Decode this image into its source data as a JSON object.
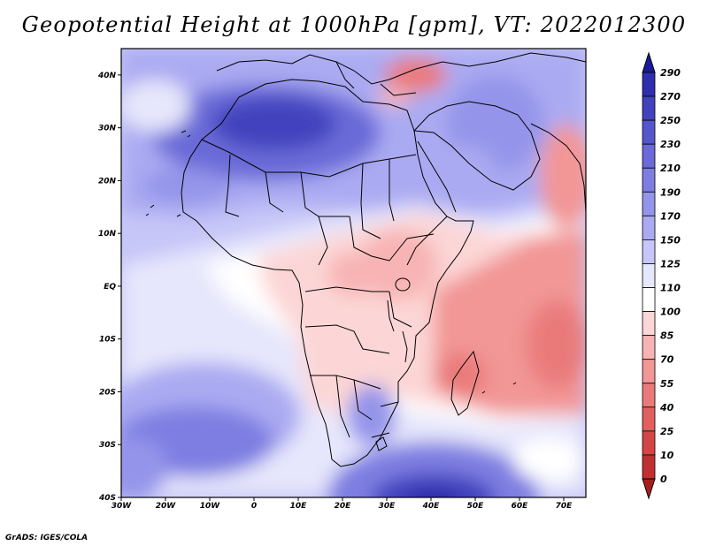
{
  "title": "Geopotential Height at 1000hPa [gpm], VT: 2022012300",
  "credit": "GrADS: IGES/COLA",
  "map": {
    "region": "Africa and surrounding oceans",
    "variable": "Geopotential Height",
    "level": "1000hPa",
    "units": "gpm",
    "valid_time": "2022012300",
    "lon_range": [
      -30,
      75
    ],
    "lat_range": [
      -40,
      45
    ],
    "lon_ticks": [
      "30W",
      "20W",
      "10W",
      "0",
      "10E",
      "20E",
      "30E",
      "40E",
      "50E",
      "60E",
      "70E"
    ],
    "lat_ticks": [
      "40N",
      "30N",
      "20N",
      "10N",
      "EQ",
      "10S",
      "20S",
      "30S",
      "40S"
    ],
    "colorbar": {
      "labels": [
        "290",
        "270",
        "250",
        "230",
        "210",
        "190",
        "170",
        "150",
        "125",
        "110",
        "100",
        "85",
        "70",
        "55",
        "40",
        "25",
        "10",
        "0"
      ],
      "colors": [
        "#1a1a9c",
        "#2e2eae",
        "#4242be",
        "#5656cc",
        "#6a6ad8",
        "#7e7ee2",
        "#9494ea",
        "#aaaaf2",
        "#c6c6f8",
        "#e6e6fc",
        "#ffffff",
        "#fcd6d6",
        "#f8b4b4",
        "#f29696",
        "#ea7a7a",
        "#e06060",
        "#d44646",
        "#c03030",
        "#a81e1e"
      ]
    }
  }
}
